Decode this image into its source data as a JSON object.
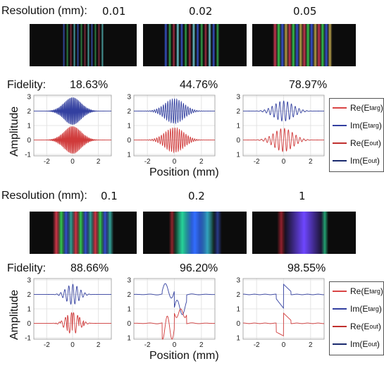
{
  "labels": {
    "resolution": "Resolution (mm):",
    "fidelity": "Fidelity:",
    "amplitude": "Amplitude",
    "position": "Position (mm)"
  },
  "legend": {
    "re_targ": "Re(E",
    "re_targ_sub": "targ",
    "im_targ": "Im(E",
    "im_targ_sub": "targ",
    "re_out": "Re(E",
    "re_out_sub": "out",
    "im_out": "Im(E",
    "im_out_sub": "out",
    "close": ")"
  },
  "colors": {
    "re": "#d94545",
    "im": "#3340a0",
    "im_out": "#1a2a6e",
    "re_out": "#c0302e"
  },
  "top": {
    "resolutions": [
      "0.01",
      "0.02",
      "0.05"
    ],
    "fidelities": [
      "18.63%",
      "44.76%",
      "78.97%"
    ]
  },
  "bottom": {
    "resolutions": [
      "0.1",
      "0.2",
      "1"
    ],
    "fidelities": [
      "88.66%",
      "96.20%",
      "98.55%"
    ]
  },
  "chart_data": [
    {
      "type": "line",
      "xlabel": "Position (mm)",
      "ylabel": "Amplitude",
      "xlim": [
        -3,
        3
      ],
      "ylim": [
        -1,
        3
      ],
      "xticks": [
        -2,
        0,
        2
      ],
      "yticks": [
        -1,
        0,
        1,
        2,
        3
      ],
      "series": [
        {
          "name": "Re(Etarg)"
        },
        {
          "name": "Im(Etarg)"
        },
        {
          "name": "Re(Eout)"
        },
        {
          "name": "Im(Eout)"
        }
      ]
    }
  ]
}
